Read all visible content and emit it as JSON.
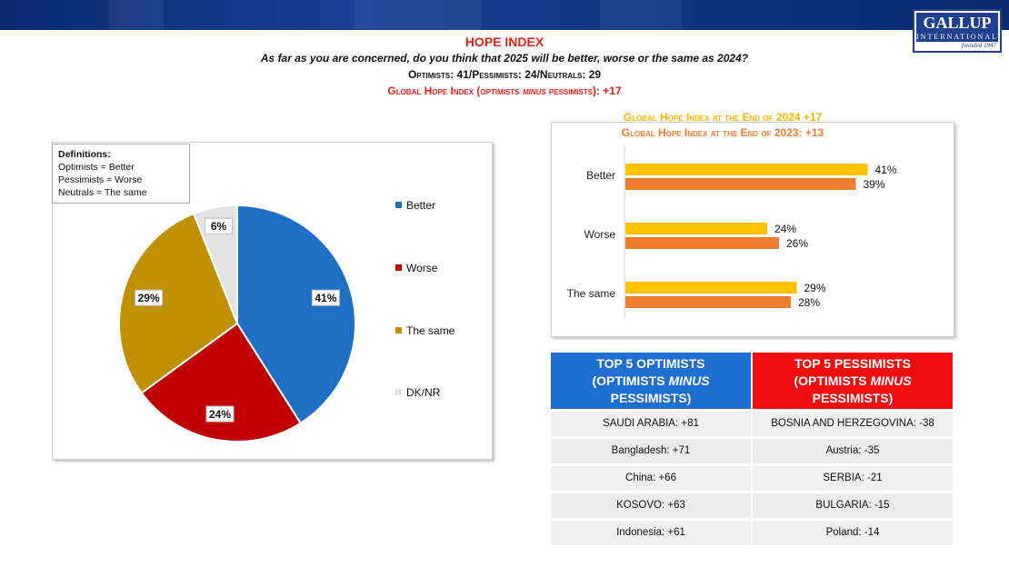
{
  "header": {
    "title": "HOPE INDEX",
    "question": "As far as you are concerned, do you think that 2025 will be better, worse or the same as 2024?",
    "counts": "Optimists: 41/Pessimists: 24/Neutrals: 29",
    "index_prefix": "Global Hope Index (optimists ",
    "index_italic": "minus",
    "index_suffix": " pessimists): +17"
  },
  "logo": {
    "name": "GALLUP",
    "sub": "INTERNATIONAL",
    "est": "founded 1947"
  },
  "definitions": {
    "title": "Definitions:",
    "lines": [
      "Optimists = Better",
      "Pessimists = Worse",
      "Neutrals = The same"
    ]
  },
  "colors": {
    "better": "#1f6fc5",
    "worse": "#c00000",
    "same": "#bf9000",
    "dknr": "#e3e3e3",
    "y2024": "#ffc000",
    "y2023": "#ed7d31",
    "red": "#e8201b",
    "blue_header": "#1f6fd1",
    "red_header": "#f10d0d"
  },
  "chart_data": [
    {
      "type": "pie",
      "categories": [
        "Better",
        "Worse",
        "The same",
        "DK/NR"
      ],
      "values": [
        41,
        24,
        29,
        6
      ],
      "labels": [
        "41%",
        "24%",
        "29%",
        "6%"
      ],
      "legend": "right"
    },
    {
      "type": "bar",
      "orientation": "horizontal",
      "categories": [
        "Better",
        "Worse",
        "The same"
      ],
      "series": [
        {
          "values": [
            41,
            24,
            29
          ],
          "labels": [
            "41%",
            "24%",
            "29%"
          ]
        },
        {
          "values": [
            39,
            26,
            28
          ],
          "labels": [
            "39%",
            "26%",
            "28%"
          ]
        }
      ],
      "title_lines": [
        "Global Hope Index at the End of 2024 +17",
        "Global Hope Index at the End of 2023: +13"
      ],
      "xlim": [
        0,
        45
      ]
    }
  ],
  "tables": {
    "optimists": {
      "header_l1": "TOP 5 OPTIMISTS",
      "header_l2_a": "(OPTIMISTS ",
      "header_l2_b": "MINUS",
      "header_l3": "PESSIMISTS)",
      "rows": [
        "SAUDI ARABIA: +81",
        "Bangladesh: +71",
        "China: +66",
        "KOSOVO: +63",
        "Indonesia: +61"
      ]
    },
    "pessimists": {
      "header_l1": "TOP 5 PESSIMISTS",
      "header_l2_a": "(OPTIMISTS ",
      "header_l2_b": "MINUS",
      "header_l3": "PESSIMISTS)",
      "rows": [
        "BOSNIA AND HERZEGOVINA: -38",
        "Austria: -35",
        "SERBIA: -21",
        "BULGARIA: -15",
        "Poland: -14"
      ]
    }
  }
}
